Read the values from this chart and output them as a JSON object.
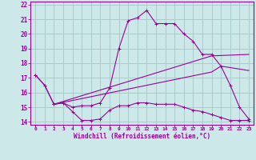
{
  "xlabel": "Windchill (Refroidissement éolien,°C)",
  "background_color": "#cce8e8",
  "grid_color": "#aacccc",
  "line_color": "#990099",
  "xlim": [
    -0.5,
    23.5
  ],
  "ylim": [
    13.8,
    22.2
  ],
  "xticks": [
    0,
    1,
    2,
    3,
    4,
    5,
    6,
    7,
    8,
    9,
    10,
    11,
    12,
    13,
    14,
    15,
    16,
    17,
    18,
    19,
    20,
    21,
    22,
    23
  ],
  "yticks": [
    14,
    15,
    16,
    17,
    18,
    19,
    20,
    21,
    22
  ],
  "line1_x": [
    0,
    1,
    2,
    3,
    4,
    5,
    6,
    7,
    8,
    9,
    10,
    11,
    12,
    13,
    14,
    15,
    16,
    17,
    18,
    19,
    20,
    21,
    22,
    23
  ],
  "line1_y": [
    17.2,
    16.5,
    15.2,
    15.3,
    14.7,
    14.1,
    14.1,
    14.2,
    14.8,
    15.1,
    15.1,
    15.3,
    15.3,
    15.2,
    15.2,
    15.2,
    15.0,
    14.8,
    14.7,
    14.5,
    14.3,
    14.1,
    14.1,
    14.1
  ],
  "line2_x": [
    0,
    1,
    2,
    3,
    4,
    5,
    6,
    7,
    8,
    9,
    10,
    11,
    12,
    13,
    14,
    15,
    16,
    17,
    18,
    19,
    20,
    21,
    22,
    23
  ],
  "line2_y": [
    17.2,
    16.5,
    15.2,
    15.3,
    15.0,
    15.1,
    15.1,
    15.3,
    16.3,
    19.0,
    20.9,
    21.1,
    21.6,
    20.7,
    20.7,
    20.7,
    20.0,
    19.5,
    18.6,
    18.6,
    17.8,
    16.5,
    15.0,
    14.2
  ],
  "line3_x": [
    2,
    19,
    23
  ],
  "line3_y": [
    15.2,
    18.5,
    18.6
  ],
  "line4_x": [
    2,
    19,
    20,
    23
  ],
  "line4_y": [
    15.2,
    17.4,
    17.8,
    17.5
  ]
}
